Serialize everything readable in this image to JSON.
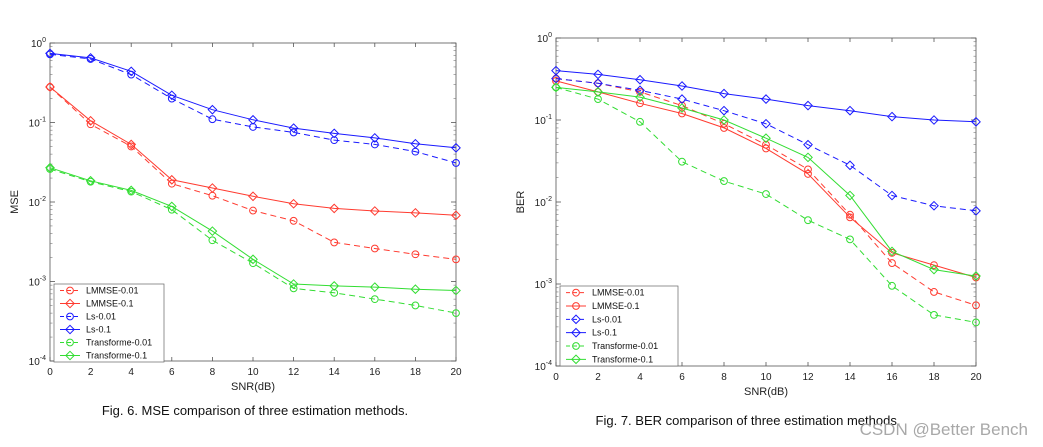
{
  "chart_data": [
    {
      "type": "line",
      "yscale": "log",
      "xlabel": "SNR(dB)",
      "ylabel": "MSE",
      "xlim": [
        0,
        20
      ],
      "ylim": [
        0.0001,
        1
      ],
      "xticks": [
        0,
        2,
        4,
        6,
        8,
        10,
        12,
        14,
        16,
        18,
        20
      ],
      "xtick_labels": [
        "0",
        "2",
        "4",
        "6",
        "8",
        "10",
        "12",
        "14",
        "16",
        "18",
        "20"
      ],
      "ytick_labels": [
        "10^-4",
        "10^-3",
        "10^-2",
        "10^-1",
        "10^0"
      ],
      "grid": false,
      "legend_position": "bottom-left",
      "caption": "Fig. 6. MSE comparison of three estimation methods.",
      "x": [
        0,
        2,
        4,
        6,
        8,
        10,
        12,
        14,
        16,
        18,
        20
      ],
      "series": [
        {
          "name": "LMMSE-0.01",
          "color": "#ff3b30",
          "marker": "circle",
          "dash": "dashed",
          "values": [
            0.28,
            0.095,
            0.05,
            0.017,
            0.012,
            0.0078,
            0.0058,
            0.0031,
            0.0026,
            0.0022,
            0.0019
          ]
        },
        {
          "name": "LMMSE-0.1",
          "color": "#ff3b30",
          "marker": "diamond",
          "dash": "solid",
          "values": [
            0.28,
            0.105,
            0.053,
            0.019,
            0.015,
            0.0118,
            0.0095,
            0.0083,
            0.0077,
            0.0073,
            0.0068
          ]
        },
        {
          "name": "Ls-0.01",
          "color": "#1a1aff",
          "marker": "circle",
          "dash": "dashed",
          "values": [
            0.72,
            0.63,
            0.4,
            0.2,
            0.11,
            0.088,
            0.075,
            0.06,
            0.053,
            0.043,
            0.031
          ]
        },
        {
          "name": "Ls-0.1",
          "color": "#1a1aff",
          "marker": "diamond",
          "dash": "solid",
          "values": [
            0.74,
            0.65,
            0.44,
            0.22,
            0.145,
            0.108,
            0.085,
            0.073,
            0.064,
            0.054,
            0.048
          ]
        },
        {
          "name": "Transforme-0.01",
          "color": "#33dd33",
          "marker": "circle",
          "dash": "dashed",
          "values": [
            0.026,
            0.018,
            0.0135,
            0.008,
            0.0033,
            0.0017,
            0.00082,
            0.00072,
            0.0006,
            0.0005,
            0.0004
          ]
        },
        {
          "name": "Transforme-0.1",
          "color": "#33dd33",
          "marker": "diamond",
          "dash": "solid",
          "values": [
            0.027,
            0.0185,
            0.014,
            0.0088,
            0.0043,
            0.0019,
            0.00093,
            0.00088,
            0.00085,
            0.0008,
            0.00077
          ]
        }
      ]
    },
    {
      "type": "line",
      "yscale": "log",
      "xlabel": "SNR(dB)",
      "ylabel": "BER",
      "xlim": [
        0,
        20
      ],
      "ylim": [
        0.0001,
        1
      ],
      "xticks": [
        0,
        2,
        4,
        6,
        8,
        10,
        12,
        14,
        16,
        18,
        20
      ],
      "xtick_labels": [
        "0",
        "2",
        "4",
        "6",
        "8",
        "10",
        "12",
        "14",
        "16",
        "18",
        "20"
      ],
      "ytick_labels": [
        "10^-4",
        "10^-3",
        "10^-2",
        "10^-1",
        "10^0"
      ],
      "grid": false,
      "legend_position": "bottom-left",
      "caption": "Fig. 7. BER comparison of three estimation methods.",
      "x": [
        0,
        2,
        4,
        6,
        8,
        10,
        12,
        14,
        16,
        18,
        20
      ],
      "series": [
        {
          "name": "LMMSE-0.01",
          "color": "#ff3b30",
          "marker": "circle",
          "dash": "dashed",
          "values": [
            0.32,
            0.28,
            0.22,
            0.15,
            0.09,
            0.05,
            0.025,
            0.007,
            0.0018,
            0.0008,
            0.00055
          ]
        },
        {
          "name": "LMMSE-0.1",
          "color": "#ff3b30",
          "marker": "circle",
          "dash": "solid",
          "values": [
            0.3,
            0.22,
            0.16,
            0.12,
            0.08,
            0.045,
            0.022,
            0.0065,
            0.0024,
            0.0017,
            0.0012
          ]
        },
        {
          "name": "Ls-0.01",
          "color": "#1a1aff",
          "marker": "diamond",
          "dash": "dashed",
          "values": [
            0.32,
            0.28,
            0.23,
            0.18,
            0.13,
            0.09,
            0.05,
            0.028,
            0.012,
            0.009,
            0.0078
          ]
        },
        {
          "name": "Ls-0.1",
          "color": "#1a1aff",
          "marker": "diamond",
          "dash": "solid",
          "values": [
            0.4,
            0.36,
            0.31,
            0.26,
            0.21,
            0.18,
            0.15,
            0.13,
            0.11,
            0.1,
            0.095
          ]
        },
        {
          "name": "Transforme-0.01",
          "color": "#33dd33",
          "marker": "circle",
          "dash": "dashed",
          "values": [
            0.25,
            0.18,
            0.095,
            0.031,
            0.018,
            0.0125,
            0.006,
            0.0035,
            0.00095,
            0.00042,
            0.00034
          ]
        },
        {
          "name": "Transforme-0.1",
          "color": "#33dd33",
          "marker": "diamond",
          "dash": "solid",
          "values": [
            0.25,
            0.22,
            0.19,
            0.14,
            0.1,
            0.06,
            0.035,
            0.012,
            0.0025,
            0.0015,
            0.00125
          ]
        }
      ]
    }
  ],
  "watermark": "CSDN @Better Bench"
}
